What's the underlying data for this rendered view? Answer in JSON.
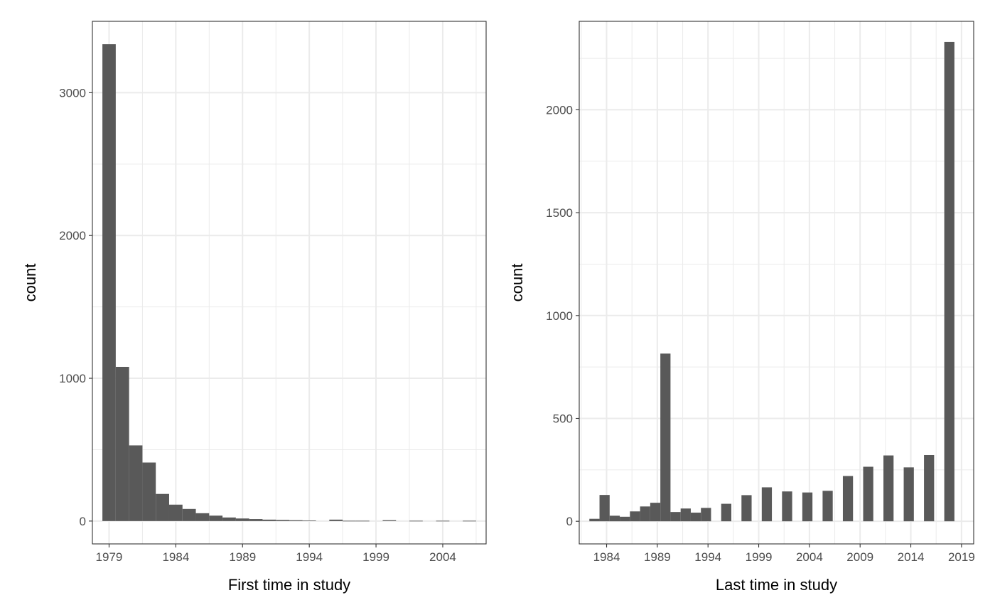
{
  "chart_data": [
    {
      "type": "bar",
      "xlabel": "First time in study",
      "ylabel": "count",
      "xlim": [
        1977.75,
        2007.25
      ],
      "ylim": [
        -160,
        3500
      ],
      "x_ticks": [
        1979,
        1984,
        1989,
        1994,
        1999,
        2004
      ],
      "y_ticks": [
        0,
        1000,
        2000,
        3000
      ],
      "bin_width": 1,
      "grid": true,
      "bar_color": "#595959",
      "bins": [
        {
          "x": 1979,
          "count": 3340
        },
        {
          "x": 1980,
          "count": 1080
        },
        {
          "x": 1981,
          "count": 530
        },
        {
          "x": 1982,
          "count": 410
        },
        {
          "x": 1983,
          "count": 190
        },
        {
          "x": 1984,
          "count": 115
        },
        {
          "x": 1985,
          "count": 85
        },
        {
          "x": 1986,
          "count": 55
        },
        {
          "x": 1987,
          "count": 38
        },
        {
          "x": 1988,
          "count": 25
        },
        {
          "x": 1989,
          "count": 18
        },
        {
          "x": 1990,
          "count": 14
        },
        {
          "x": 1991,
          "count": 10
        },
        {
          "x": 1992,
          "count": 8
        },
        {
          "x": 1993,
          "count": 6
        },
        {
          "x": 1994,
          "count": 4
        },
        {
          "x": 1995,
          "count": 0
        },
        {
          "x": 1996,
          "count": 10
        },
        {
          "x": 1997,
          "count": 2
        },
        {
          "x": 1998,
          "count": 2
        },
        {
          "x": 1999,
          "count": 0
        },
        {
          "x": 2000,
          "count": 6
        },
        {
          "x": 2001,
          "count": 0
        },
        {
          "x": 2002,
          "count": 2
        },
        {
          "x": 2003,
          "count": 0
        },
        {
          "x": 2004,
          "count": 2
        },
        {
          "x": 2005,
          "count": 0
        },
        {
          "x": 2006,
          "count": 2
        }
      ]
    },
    {
      "type": "bar",
      "xlabel": "Last time in study",
      "ylabel": "count",
      "xlim": [
        1981.3,
        2020.2
      ],
      "ylim": [
        -110,
        2430
      ],
      "x_ticks": [
        1984,
        1989,
        1994,
        1999,
        2004,
        2009,
        2014,
        2019
      ],
      "y_ticks": [
        0,
        500,
        1000,
        1500,
        2000
      ],
      "bin_width": 1,
      "grid": true,
      "bar_color": "#595959",
      "bins": [
        {
          "x": 1982.8,
          "count": 12
        },
        {
          "x": 1983.8,
          "count": 128
        },
        {
          "x": 1984.8,
          "count": 27
        },
        {
          "x": 1985.8,
          "count": 22
        },
        {
          "x": 1986.8,
          "count": 48
        },
        {
          "x": 1987.8,
          "count": 72
        },
        {
          "x": 1988.8,
          "count": 90
        },
        {
          "x": 1989.8,
          "count": 815
        },
        {
          "x": 1990.8,
          "count": 45
        },
        {
          "x": 1991.8,
          "count": 62
        },
        {
          "x": 1992.8,
          "count": 42
        },
        {
          "x": 1993.8,
          "count": 65
        },
        {
          "x": 1995.8,
          "count": 85
        },
        {
          "x": 1997.8,
          "count": 127
        },
        {
          "x": 1999.8,
          "count": 165
        },
        {
          "x": 2001.8,
          "count": 145
        },
        {
          "x": 2003.8,
          "count": 140
        },
        {
          "x": 2005.8,
          "count": 148
        },
        {
          "x": 2007.8,
          "count": 220
        },
        {
          "x": 2009.8,
          "count": 265
        },
        {
          "x": 2011.8,
          "count": 320
        },
        {
          "x": 2013.8,
          "count": 262
        },
        {
          "x": 2015.8,
          "count": 322
        },
        {
          "x": 2017.8,
          "count": 2330
        }
      ]
    }
  ]
}
